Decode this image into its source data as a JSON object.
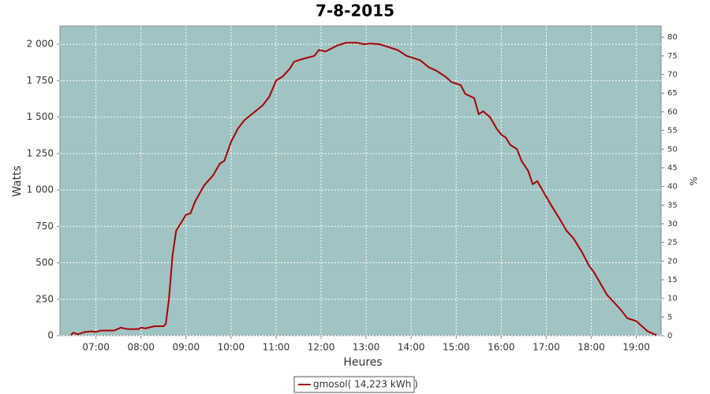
{
  "chart_data": {
    "type": "line",
    "title": "7-8-2015",
    "x_label": "Heures",
    "y_label": "Watts",
    "y2_label": "%",
    "x": [
      6.44,
      6.5,
      6.6,
      6.75,
      6.9,
      7.0,
      7.1,
      7.4,
      7.55,
      7.7,
      7.95,
      8.0,
      8.1,
      8.3,
      8.5,
      8.55,
      8.62,
      8.7,
      8.78,
      8.9,
      9.0,
      9.1,
      9.2,
      9.4,
      9.6,
      9.75,
      9.85,
      10.0,
      10.15,
      10.3,
      10.5,
      10.7,
      10.85,
      11.0,
      11.15,
      11.3,
      11.4,
      11.6,
      11.85,
      11.95,
      12.1,
      12.35,
      12.55,
      12.8,
      12.95,
      13.1,
      13.3,
      13.5,
      13.7,
      13.9,
      14.2,
      14.4,
      14.55,
      14.75,
      14.9,
      15.1,
      15.2,
      15.4,
      15.5,
      15.6,
      15.75,
      15.9,
      16.0,
      16.1,
      16.2,
      16.35,
      16.45,
      16.6,
      16.7,
      16.8,
      16.95,
      17.1,
      17.3,
      17.45,
      17.6,
      17.8,
      17.95,
      18.05,
      18.2,
      18.35,
      18.5,
      18.65,
      18.8,
      19.0,
      19.25,
      19.4,
      19.45
    ],
    "series": [
      {
        "name": "gmosol( 14,223 kWh )",
        "color": "#aa0000",
        "values": [
          5,
          20,
          10,
          25,
          30,
          25,
          35,
          35,
          55,
          45,
          45,
          55,
          50,
          65,
          65,
          80,
          250,
          550,
          720,
          780,
          830,
          840,
          920,
          1030,
          1100,
          1180,
          1200,
          1330,
          1420,
          1480,
          1530,
          1580,
          1640,
          1750,
          1780,
          1830,
          1880,
          1900,
          1920,
          1960,
          1950,
          1990,
          2010,
          2010,
          2000,
          2005,
          2000,
          1980,
          1960,
          1920,
          1890,
          1840,
          1820,
          1780,
          1740,
          1720,
          1660,
          1630,
          1520,
          1540,
          1500,
          1420,
          1380,
          1360,
          1310,
          1280,
          1200,
          1130,
          1040,
          1060,
          980,
          900,
          800,
          720,
          670,
          570,
          480,
          440,
          360,
          280,
          230,
          180,
          120,
          100,
          30,
          10,
          5
        ]
      }
    ],
    "xlim": [
      6.2,
      19.55
    ],
    "xticks": [
      {
        "value": 7,
        "label": "07:00"
      },
      {
        "value": 8,
        "label": "08:00"
      },
      {
        "value": 9,
        "label": "09:00"
      },
      {
        "value": 10,
        "label": "10:00"
      },
      {
        "value": 11,
        "label": "11:00"
      },
      {
        "value": 12,
        "label": "12:00"
      },
      {
        "value": 13,
        "label": "13:00"
      },
      {
        "value": 14,
        "label": "14:00"
      },
      {
        "value": 15,
        "label": "15:00"
      },
      {
        "value": 16,
        "label": "16:00"
      },
      {
        "value": 17,
        "label": "17:00"
      },
      {
        "value": 18,
        "label": "18:00"
      },
      {
        "value": 19,
        "label": "19:00"
      }
    ],
    "ylim": [
      0,
      2125
    ],
    "yticks": [
      0,
      250,
      500,
      750,
      {
        "value": 1000,
        "label": "1 000"
      },
      {
        "value": 1250,
        "label": "1 250"
      },
      {
        "value": 1500,
        "label": "1 500"
      },
      {
        "value": 1750,
        "label": "1 750"
      },
      {
        "value": 2000,
        "label": "2 000"
      }
    ],
    "y2lim": [
      0,
      83
    ],
    "y2ticks": [
      0,
      5,
      10,
      15,
      20,
      25,
      30,
      35,
      40,
      45,
      50,
      55,
      60,
      65,
      70,
      75,
      80
    ],
    "grid": true,
    "background": "#a0c3c3"
  }
}
